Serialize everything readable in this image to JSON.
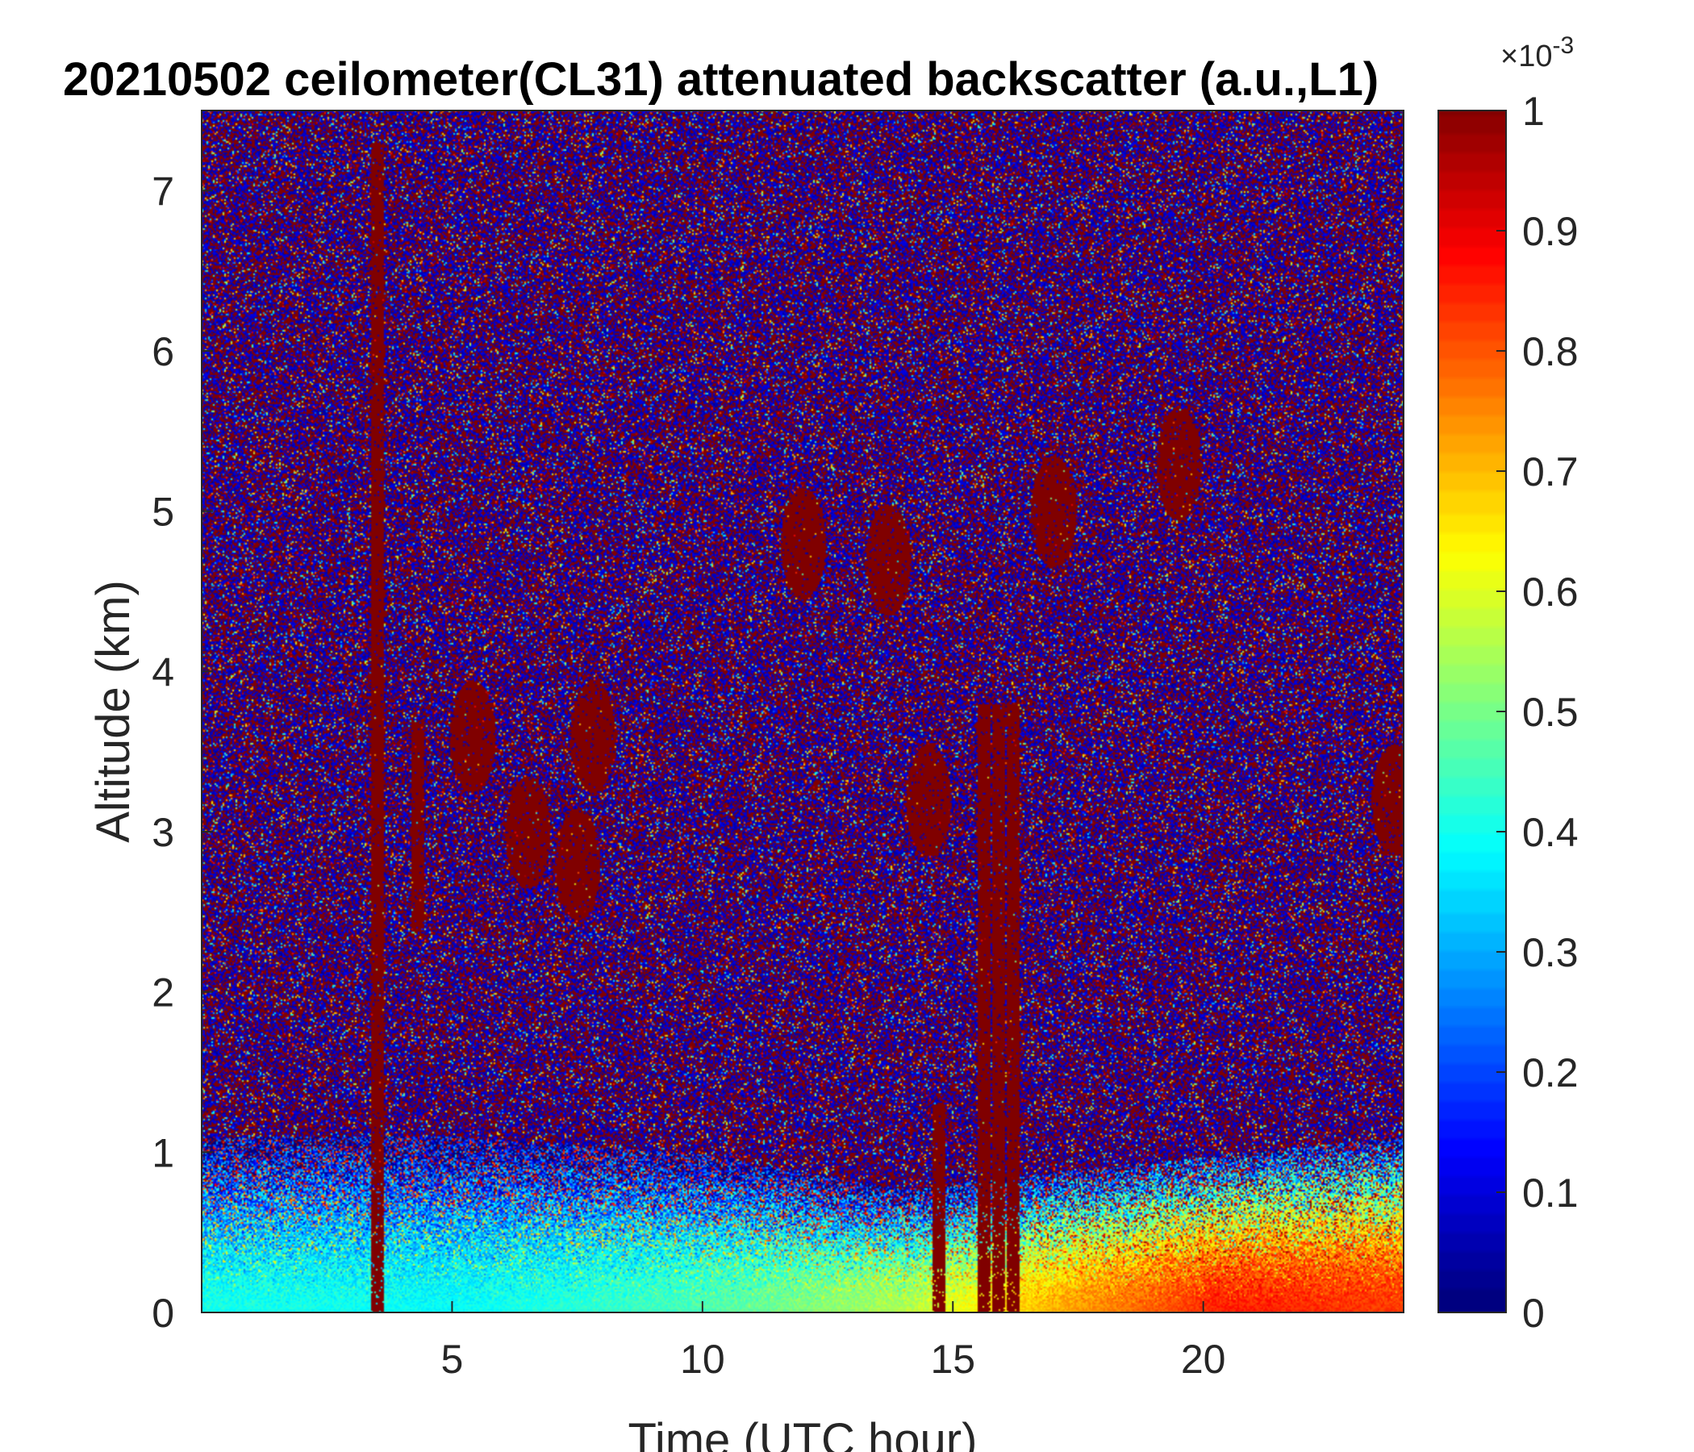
{
  "chart_data": {
    "type": "heatmap",
    "title": "20210502 ceilometer(CL31) attenuated backscatter (a.u.,L1)",
    "xlabel": "Time (UTC hour)",
    "ylabel": "Altitude (km)",
    "xlim": [
      0,
      24
    ],
    "ylim": [
      0,
      7.5
    ],
    "x_ticks": [
      5,
      10,
      15,
      20
    ],
    "y_ticks": [
      0,
      1,
      2,
      3,
      4,
      5,
      6,
      7
    ],
    "colorbar": {
      "min": 0,
      "max": 1,
      "exponent_label": "×10",
      "exponent": "-3",
      "ticks": [
        0,
        0.1,
        0.2,
        0.3,
        0.4,
        0.5,
        0.6,
        0.7,
        0.8,
        0.9,
        1
      ],
      "colormap": "jet"
    },
    "features": {
      "boundary_layer": [
        {
          "t": 0,
          "h": 0.5,
          "v": 0.4
        },
        {
          "t": 5,
          "h": 0.5,
          "v": 0.38
        },
        {
          "t": 10,
          "h": 0.45,
          "v": 0.45
        },
        {
          "t": 14,
          "h": 0.35,
          "v": 0.55
        },
        {
          "t": 17,
          "h": 0.4,
          "v": 0.7
        },
        {
          "t": 20.5,
          "h": 0.45,
          "v": 0.85
        },
        {
          "t": 24,
          "h": 0.5,
          "v": 0.82
        }
      ],
      "cloud_columns": [
        {
          "t": 3.5,
          "h0": 0,
          "h1": 7.3
        },
        {
          "t": 4.3,
          "h0": 2.4,
          "h1": 3.7
        },
        {
          "t": 14.7,
          "h0": 0,
          "h1": 1.3
        },
        {
          "t": 15.6,
          "h0": 0,
          "h1": 3.8
        },
        {
          "t": 15.9,
          "h0": 0,
          "h1": 3.8
        },
        {
          "t": 16.2,
          "h0": 0,
          "h1": 3.8
        }
      ],
      "cloud_patches": [
        {
          "t": 5.4,
          "h": 3.6
        },
        {
          "t": 6.5,
          "h": 3.0
        },
        {
          "t": 7.8,
          "h": 3.6
        },
        {
          "t": 7.5,
          "h": 2.8
        },
        {
          "t": 12.0,
          "h": 4.8
        },
        {
          "t": 13.7,
          "h": 4.7
        },
        {
          "t": 14.5,
          "h": 3.2
        },
        {
          "t": 17.0,
          "h": 5.0
        },
        {
          "t": 19.5,
          "h": 5.3
        },
        {
          "t": 23.8,
          "h": 3.2
        }
      ]
    }
  }
}
